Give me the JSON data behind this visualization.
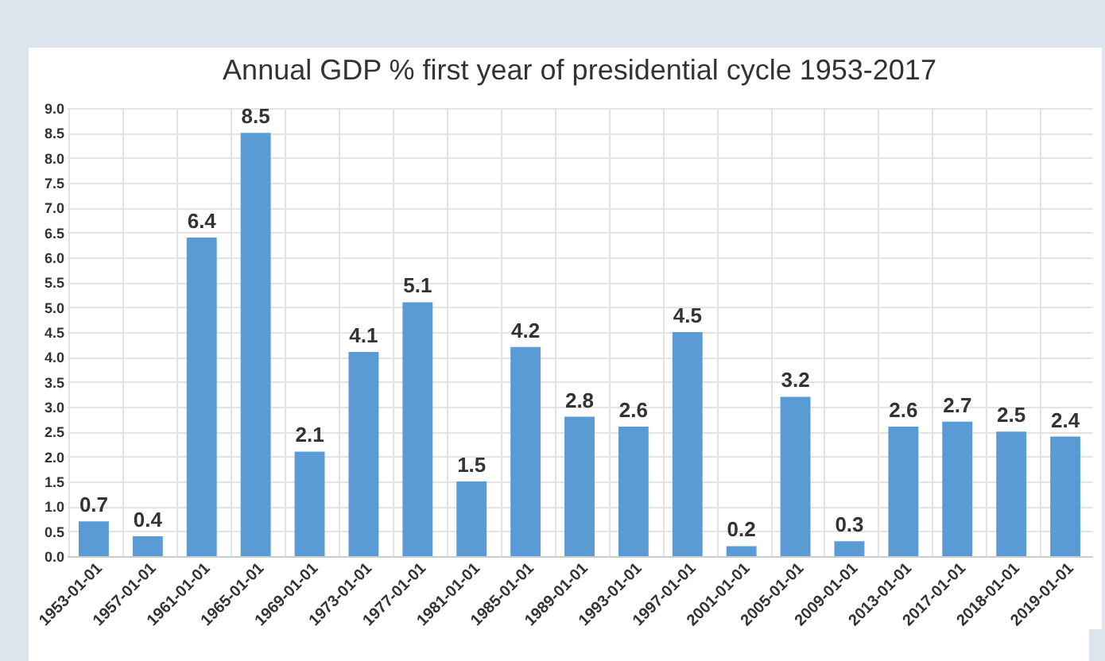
{
  "chart_data": {
    "type": "bar",
    "title": "Annual GDP % first year of presidential cycle 1953-2017",
    "categories": [
      "1953-01-01",
      "1957-01-01",
      "1961-01-01",
      "1965-01-01",
      "1969-01-01",
      "1973-01-01",
      "1977-01-01",
      "1981-01-01",
      "1985-01-01",
      "1989-01-01",
      "1993-01-01",
      "1997-01-01",
      "2001-01-01",
      "2005-01-01",
      "2009-01-01",
      "2013-01-01",
      "2017-01-01",
      "2018-01-01",
      "2019-01-01"
    ],
    "values": [
      0.7,
      0.4,
      6.4,
      8.5,
      2.1,
      4.1,
      5.1,
      1.5,
      4.2,
      2.8,
      2.6,
      4.5,
      0.2,
      3.2,
      0.3,
      2.6,
      2.7,
      2.5,
      2.4
    ],
    "color": "#5b9bd5",
    "ylim": [
      0,
      9
    ],
    "yticks": [
      {
        "value": 0,
        "label": "0.0"
      },
      0.5,
      {
        "value": 1,
        "label": "1.0"
      },
      1.5,
      {
        "value": 2,
        "label": "2.0"
      },
      2.5,
      {
        "value": 3,
        "label": "3.0"
      },
      3.5,
      {
        "value": 4,
        "label": "4.0"
      },
      4.5,
      {
        "value": 5,
        "label": "5.0"
      },
      5.5,
      {
        "value": 6,
        "label": "6.0"
      },
      6.5,
      {
        "value": 7,
        "label": "7.0"
      },
      7.5,
      {
        "value": 8,
        "label": "8.0"
      },
      8.5,
      {
        "value": 9,
        "label": "9.0"
      }
    ],
    "grid": true,
    "data_labels": true
  }
}
